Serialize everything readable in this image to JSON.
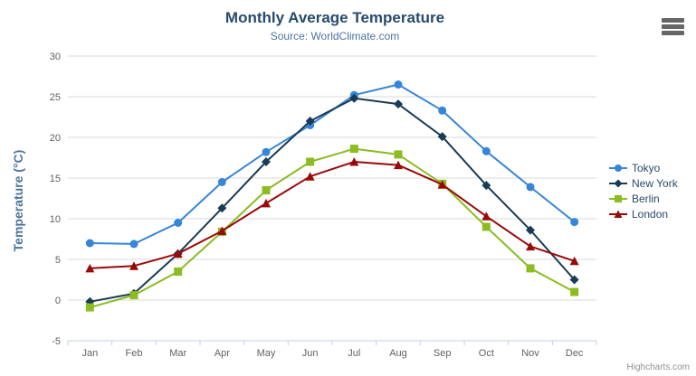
{
  "header": {
    "title": "Monthly Average Temperature",
    "subtitle": "Source: WorldClimate.com"
  },
  "credits": {
    "label": "Highcharts.com"
  },
  "chart_data": {
    "type": "line",
    "title": "Monthly Average Temperature",
    "subtitle": "Source: WorldClimate.com",
    "categories": [
      "Jan",
      "Feb",
      "Mar",
      "Apr",
      "May",
      "Jun",
      "Jul",
      "Aug",
      "Sep",
      "Oct",
      "Nov",
      "Dec"
    ],
    "xlabel": "",
    "ylabel": "Temperature (°C)",
    "ylim": [
      -5,
      30
    ],
    "ytick_interval": 5,
    "grid": true,
    "legend_position": "right",
    "series": [
      {
        "name": "Tokyo",
        "color": "#3585d8",
        "marker": "circle",
        "values": [
          7.0,
          6.9,
          9.5,
          14.5,
          18.2,
          21.5,
          25.2,
          26.5,
          23.3,
          18.3,
          13.9,
          9.6
        ]
      },
      {
        "name": "New York",
        "color": "#1a3b55",
        "marker": "diamond",
        "values": [
          -0.2,
          0.8,
          5.7,
          11.3,
          17.0,
          22.0,
          24.8,
          24.1,
          20.1,
          14.1,
          8.6,
          2.5
        ]
      },
      {
        "name": "Berlin",
        "color": "#8bbc21",
        "marker": "square",
        "values": [
          -0.9,
          0.6,
          3.5,
          8.4,
          13.5,
          17.0,
          18.6,
          17.9,
          14.3,
          9.0,
          3.9,
          1.0
        ]
      },
      {
        "name": "London",
        "color": "#980a0a",
        "marker": "triangle",
        "values": [
          3.9,
          4.2,
          5.7,
          8.5,
          11.9,
          15.2,
          17.0,
          16.6,
          14.2,
          10.3,
          6.6,
          4.8
        ]
      }
    ],
    "axis_colors": {
      "grid": "#d8d8d8",
      "axis_line": "#c0d0e0",
      "tick": "#c0d0e0",
      "label": "#606060"
    }
  }
}
